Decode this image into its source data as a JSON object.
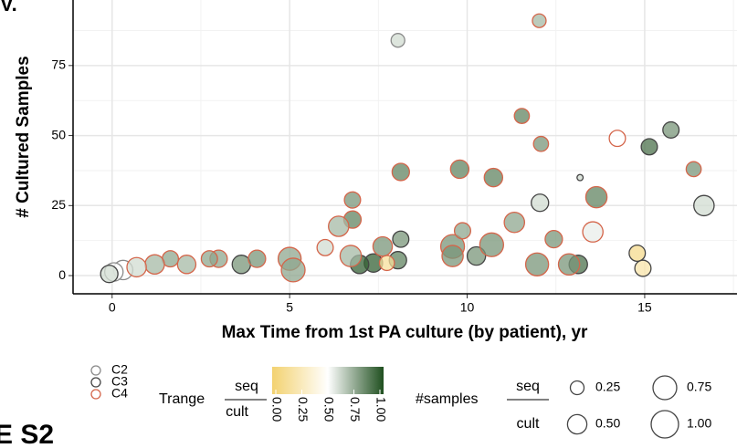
{
  "chart_data": {
    "type": "scatter",
    "fragments": [
      "V.",
      "E S2"
    ],
    "xlabel": "Max Time from 1st PA culture (by patient), yr",
    "ylabel": "# Cultured Samples",
    "xlim": [
      -1.1,
      17.6
    ],
    "ylim": [
      -6.5,
      98.4
    ],
    "xticks": [
      0,
      5,
      10,
      15
    ],
    "yticks": [
      0,
      25,
      50,
      75
    ],
    "grid": true,
    "series": [
      {
        "name": "C2",
        "color": "#8a8a8a",
        "x": [
          8.05,
          0.31,
          0.05
        ],
        "y": [
          84,
          2,
          1.3
        ],
        "size": [
          0.25,
          0.5,
          0.45
        ],
        "trange": [
          0.6,
          0.5,
          0.5
        ]
      },
      {
        "name": "C3",
        "color": "#444444",
        "x": [
          15.74,
          15.13,
          16.67,
          13.18,
          12.05,
          13.13,
          14.79,
          14.95,
          10.26,
          8.13,
          8.05,
          7.36,
          6.97,
          3.64,
          -0.08
        ],
        "y": [
          52,
          46,
          25,
          35,
          26,
          4,
          8,
          2.6,
          7,
          13,
          5.5,
          4.5,
          4,
          4,
          0.6
        ],
        "size": [
          0.35,
          0.35,
          0.55,
          0.05,
          0.4,
          0.45,
          0.35,
          0.35,
          0.45,
          0.35,
          0.4,
          0.45,
          0.45,
          0.45,
          0.4
        ],
        "trange": [
          0.8,
          0.9,
          0.6,
          0.6,
          0.6,
          0.9,
          0.1,
          0.2,
          0.8,
          0.8,
          0.85,
          0.95,
          0.95,
          0.8,
          0.6
        ]
      },
      {
        "name": "C4",
        "color": "#d4654a",
        "x": [
          12.03,
          11.54,
          12.08,
          14.23,
          16.38,
          13.64,
          8.13,
          9.79,
          10.74,
          6.77,
          6.77,
          6.38,
          6.0,
          11.33,
          12.44,
          13.54,
          12.87,
          11.97,
          10.69,
          9.59,
          9.59,
          9.87,
          7.74,
          6.72,
          7.62,
          5.0,
          5.1,
          4.08,
          3.0,
          2.74,
          2.1,
          1.64,
          1.2,
          0.69
        ],
        "y": [
          91,
          57,
          47,
          49,
          38,
          28,
          37,
          38,
          35,
          27,
          20,
          17.6,
          10,
          19,
          13,
          15.6,
          4,
          4,
          11,
          10.4,
          7,
          16,
          4.5,
          7,
          10.4,
          6,
          2,
          6,
          6,
          6,
          4,
          6,
          4,
          3
        ],
        "size": [
          0.25,
          0.3,
          0.3,
          0.35,
          0.3,
          0.6,
          0.4,
          0.45,
          0.45,
          0.35,
          0.4,
          0.55,
          0.35,
          0.55,
          0.4,
          0.55,
          0.6,
          0.7,
          0.75,
          0.75,
          0.6,
          0.35,
          0.3,
          0.6,
          0.5,
          0.7,
          0.75,
          0.4,
          0.4,
          0.35,
          0.45,
          0.35,
          0.5,
          0.5
        ],
        "trange": [
          0.7,
          0.85,
          0.8,
          0.5,
          0.8,
          0.85,
          0.85,
          0.85,
          0.85,
          0.8,
          0.85,
          0.7,
          0.6,
          0.75,
          0.8,
          0.55,
          0.8,
          0.8,
          0.8,
          0.8,
          0.8,
          0.75,
          0.15,
          0.7,
          0.8,
          0.75,
          0.75,
          0.8,
          0.75,
          0.75,
          0.7,
          0.75,
          0.7,
          0.6
        ]
      }
    ],
    "color_legend": {
      "title": "Trange",
      "numerator": "seq",
      "denominator": "cult",
      "colors": [
        "#f3d270",
        "#ffffff",
        "#1f4f1f"
      ],
      "ticks": [
        {
          "value": 0,
          "label": "0.00"
        },
        {
          "value": 0.25,
          "label": "0.25"
        },
        {
          "value": 0.5,
          "label": "0.50"
        },
        {
          "value": 0.75,
          "label": "0.75"
        },
        {
          "value": 1,
          "label": "1.00"
        }
      ]
    },
    "size_legend": {
      "title": "#samples",
      "numerator": "seq",
      "denominator": "cult",
      "values": [
        {
          "value": 0.25,
          "label": "0.25"
        },
        {
          "value": 0.5,
          "label": "0.50"
        },
        {
          "value": 0.75,
          "label": "0.75"
        },
        {
          "value": 1,
          "label": "1.00"
        }
      ]
    }
  }
}
